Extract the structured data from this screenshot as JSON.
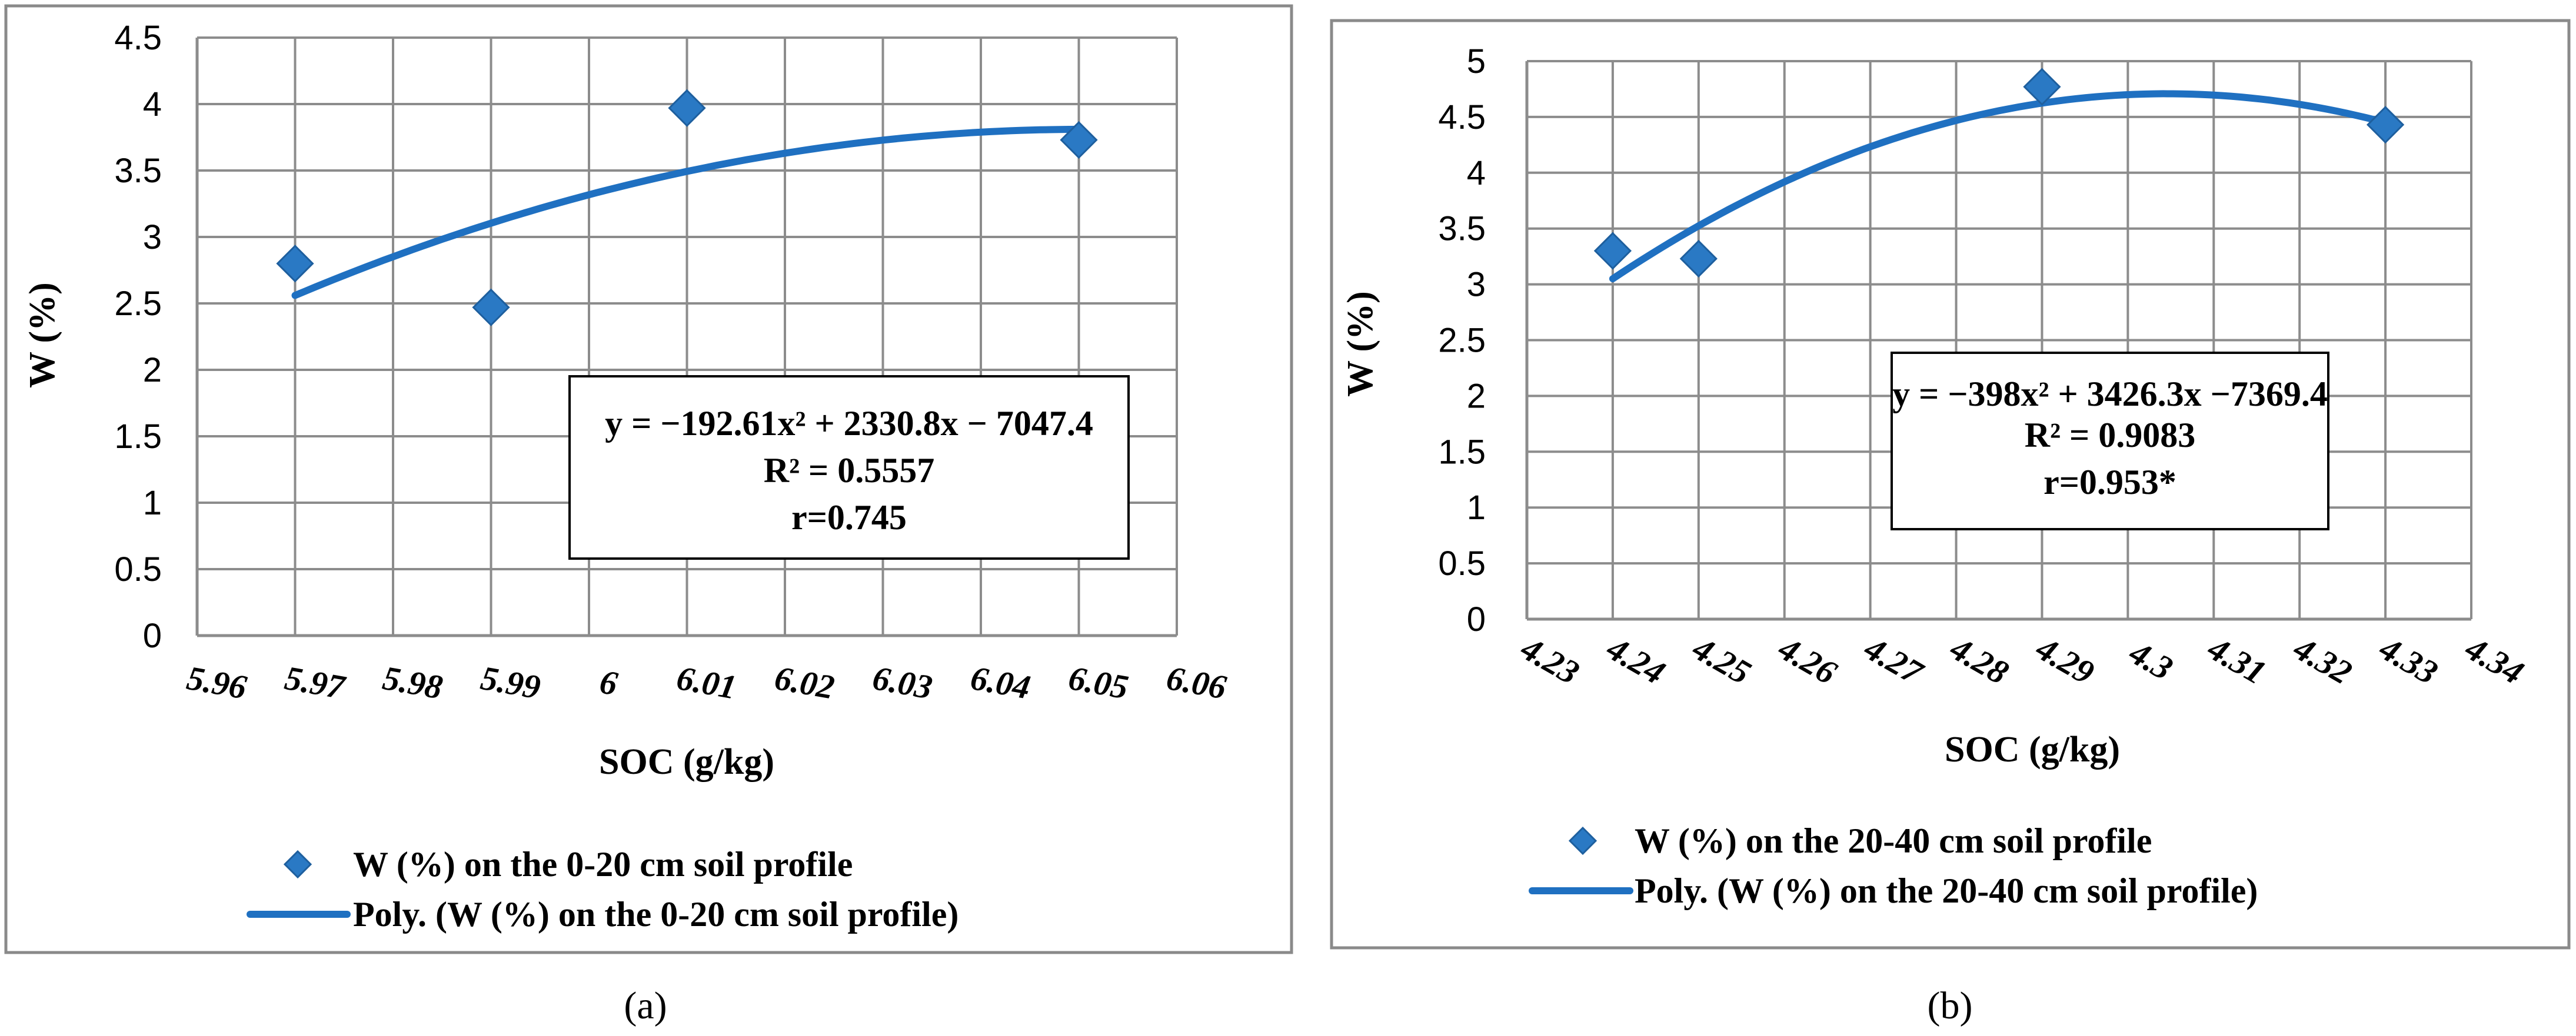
{
  "colors": {
    "series": "#2a79c4",
    "trend": "#1f70c1",
    "grid": "#8c8c8c"
  },
  "chart_data": [
    {
      "type": "scatter",
      "panel_label": "(a)",
      "xlabel": "SOC (g/kg)",
      "ylabel": "W (%)",
      "xlim": [
        5.96,
        6.06
      ],
      "ylim": [
        0,
        4.5
      ],
      "x_ticks": [
        "5.96",
        "5.97",
        "5.98",
        "5.99",
        "6",
        "6.01",
        "6.02",
        "6.03",
        "6.04",
        "6.05",
        "6.06"
      ],
      "y_ticks": [
        "0",
        "0.5",
        "1",
        "1.5",
        "2",
        "2.5",
        "3",
        "3.5",
        "4",
        "4.5"
      ],
      "series": [
        {
          "name": "W (%) on the 0-20 cm soil profile",
          "x": [
            5.97,
            5.99,
            6.01,
            6.05
          ],
          "y": [
            2.8,
            2.47,
            3.97,
            3.73
          ]
        }
      ],
      "trendline": {
        "name": "Poly. (W (%) on the 0-20 cm soil profile)",
        "coefficients": [
          -192.61,
          2330.8,
          -7047.4
        ],
        "x_range": [
          5.97,
          6.05
        ],
        "endpoints_y": [
          2.56,
          3.81
        ]
      },
      "equation": {
        "line1": "y = −192.61x² + 2330.8x − 7047.4",
        "line2": "R² = 0.5557",
        "line3": "r=0.745"
      }
    },
    {
      "type": "scatter",
      "panel_label": "(b)",
      "xlabel": "SOC (g/kg)",
      "ylabel": "W (%)",
      "xlim": [
        4.23,
        4.34
      ],
      "ylim": [
        0,
        5
      ],
      "x_ticks": [
        "4.23",
        "4.24",
        "4.25",
        "4.26",
        "4.27",
        "4.28",
        "4.29",
        "4.3",
        "4.31",
        "4.32",
        "4.33",
        "4.34"
      ],
      "y_ticks": [
        "0",
        "0.5",
        "1",
        "1.5",
        "2",
        "2.5",
        "3",
        "3.5",
        "4",
        "4.5",
        "5"
      ],
      "series": [
        {
          "name": "W (%) on the 20-40 cm soil profile",
          "x": [
            4.24,
            4.25,
            4.29,
            4.33
          ],
          "y": [
            3.3,
            3.23,
            4.77,
            4.43
          ]
        }
      ],
      "trendline": {
        "name": "Poly. (W (%) on the 20-40 cm soil profile)",
        "coefficients": [
          -398,
          3426.3,
          -7369.4
        ],
        "x_range": [
          4.24,
          4.33
        ],
        "endpoints_y": [
          3.05,
          4.45
        ]
      },
      "equation": {
        "line1": "y = −398x² + 3426.3x −7369.4",
        "line2": "R² = 0.9083",
        "line3": "r=0.953*"
      }
    }
  ]
}
